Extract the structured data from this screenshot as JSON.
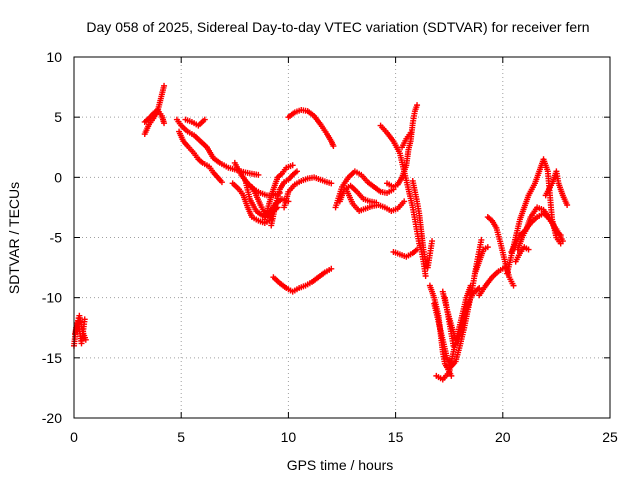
{
  "chart_data": {
    "type": "scatter",
    "title": "Day 058 of 2025, Sidereal Day-to-day VTEC variation (SDTVAR) for receiver fern",
    "xlabel": "GPS time / hours",
    "ylabel": "SDTVAR / TECUs",
    "xlim": [
      0,
      25
    ],
    "ylim": [
      -20,
      10
    ],
    "xticks": [
      0,
      5,
      10,
      15,
      20,
      25
    ],
    "yticks": [
      -20,
      -15,
      -10,
      -5,
      0,
      5,
      10
    ],
    "grid": true,
    "marker": "+",
    "color": "#ff0000",
    "tracks": [
      [
        [
          0.0,
          -14.0
        ],
        [
          0.1,
          -12.5
        ],
        [
          0.25,
          -11.5
        ],
        [
          0.4,
          -12.8
        ],
        [
          0.55,
          -13.5
        ]
      ],
      [
        [
          0.05,
          -13.0
        ],
        [
          0.2,
          -12.0
        ],
        [
          0.35,
          -13.8
        ],
        [
          0.5,
          -11.8
        ]
      ],
      [
        [
          3.3,
          3.6
        ],
        [
          3.5,
          4.4
        ],
        [
          3.7,
          4.9
        ],
        [
          3.9,
          5.5
        ],
        [
          4.0,
          6.2
        ],
        [
          4.1,
          6.9
        ],
        [
          4.2,
          7.6
        ]
      ],
      [
        [
          3.3,
          4.6
        ],
        [
          3.5,
          4.9
        ],
        [
          3.7,
          5.3
        ],
        [
          3.9,
          5.6
        ],
        [
          4.1,
          5.1
        ],
        [
          4.2,
          4.5
        ]
      ],
      [
        [
          4.8,
          4.8
        ],
        [
          5.0,
          4.3
        ],
        [
          5.3,
          3.8
        ],
        [
          5.6,
          3.5
        ],
        [
          5.9,
          3.0
        ],
        [
          6.2,
          2.5
        ],
        [
          6.5,
          1.6
        ],
        [
          6.8,
          1.2
        ],
        [
          7.2,
          0.8
        ],
        [
          7.6,
          0.6
        ],
        [
          8.0,
          0.4
        ],
        [
          8.3,
          0.3
        ],
        [
          8.6,
          0.2
        ]
      ],
      [
        [
          4.9,
          3.8
        ],
        [
          5.1,
          3.0
        ],
        [
          5.3,
          2.6
        ],
        [
          5.6,
          2.0
        ],
        [
          5.8,
          1.5
        ],
        [
          6.0,
          1.2
        ],
        [
          6.3,
          0.9
        ],
        [
          6.5,
          0.4
        ],
        [
          6.7,
          0.0
        ],
        [
          6.9,
          -0.4
        ]
      ],
      [
        [
          5.2,
          4.8
        ],
        [
          5.5,
          4.6
        ],
        [
          5.8,
          4.3
        ],
        [
          6.1,
          4.8
        ]
      ],
      [
        [
          7.4,
          -0.5
        ],
        [
          7.7,
          -1.0
        ],
        [
          7.9,
          -1.5
        ],
        [
          8.1,
          -2.5
        ],
        [
          8.3,
          -3.3
        ],
        [
          8.6,
          -3.6
        ],
        [
          8.9,
          -3.8
        ],
        [
          9.2,
          -3.5
        ]
      ],
      [
        [
          7.5,
          1.2
        ],
        [
          7.8,
          0.2
        ],
        [
          8.1,
          -0.5
        ],
        [
          8.4,
          -1.0
        ],
        [
          8.7,
          -1.3
        ],
        [
          9.0,
          -1.5
        ],
        [
          9.3,
          -1.5
        ],
        [
          9.6,
          -1.3
        ]
      ],
      [
        [
          8.0,
          -0.3
        ],
        [
          8.2,
          -1.8
        ],
        [
          8.5,
          -2.8
        ],
        [
          8.8,
          -3.2
        ],
        [
          9.1,
          -3.0
        ],
        [
          9.4,
          -2.2
        ],
        [
          9.7,
          -1.8
        ],
        [
          10.0,
          -2.0
        ]
      ],
      [
        [
          8.3,
          -0.8
        ],
        [
          8.5,
          -1.5
        ],
        [
          8.7,
          -2.3
        ],
        [
          8.9,
          -3.0
        ],
        [
          9.1,
          -3.3
        ],
        [
          9.3,
          -2.8
        ],
        [
          9.5,
          -2.5
        ]
      ],
      [
        [
          8.9,
          -3.5
        ],
        [
          9.1,
          -2.2
        ],
        [
          9.3,
          -1.0
        ],
        [
          9.5,
          0.0
        ],
        [
          9.7,
          0.3
        ],
        [
          9.9,
          0.8
        ],
        [
          10.2,
          1.0
        ]
      ],
      [
        [
          9.2,
          -4.0
        ],
        [
          9.4,
          -2.3
        ],
        [
          9.6,
          -1.0
        ],
        [
          9.8,
          -0.4
        ],
        [
          10.0,
          -0.2
        ],
        [
          10.2,
          0.2
        ],
        [
          10.4,
          0.5
        ]
      ],
      [
        [
          9.8,
          -2.5
        ],
        [
          10.0,
          -1.2
        ],
        [
          10.3,
          -0.6
        ],
        [
          10.6,
          -0.3
        ],
        [
          10.9,
          -0.1
        ],
        [
          11.2,
          0.0
        ],
        [
          11.5,
          -0.2
        ],
        [
          11.8,
          -0.4
        ],
        [
          12.0,
          -0.5
        ]
      ],
      [
        [
          10.0,
          5.0
        ],
        [
          10.3,
          5.4
        ],
        [
          10.6,
          5.6
        ],
        [
          10.9,
          5.5
        ],
        [
          11.2,
          5.1
        ],
        [
          11.5,
          4.4
        ],
        [
          11.8,
          3.6
        ],
        [
          12.0,
          3.0
        ],
        [
          12.1,
          2.6
        ]
      ],
      [
        [
          9.3,
          -8.3
        ],
        [
          9.6,
          -8.8
        ],
        [
          9.9,
          -9.2
        ],
        [
          10.2,
          -9.5
        ],
        [
          10.5,
          -9.2
        ],
        [
          10.8,
          -9.0
        ],
        [
          11.1,
          -8.7
        ],
        [
          11.4,
          -8.3
        ],
        [
          11.7,
          -7.9
        ],
        [
          12.0,
          -7.6
        ]
      ],
      [
        [
          12.2,
          -2.5
        ],
        [
          12.5,
          -0.8
        ],
        [
          12.8,
          0.0
        ],
        [
          13.1,
          0.5
        ],
        [
          13.4,
          0.2
        ],
        [
          13.7,
          -0.4
        ],
        [
          14.0,
          -0.8
        ],
        [
          14.3,
          -1.2
        ],
        [
          14.6,
          -1.3
        ],
        [
          14.9,
          -1.0
        ]
      ],
      [
        [
          12.4,
          -2.0
        ],
        [
          12.6,
          -1.0
        ],
        [
          12.9,
          -0.7
        ],
        [
          13.2,
          -1.2
        ],
        [
          13.5,
          -1.8
        ],
        [
          13.8,
          -2.0
        ],
        [
          14.1,
          -2.1
        ]
      ],
      [
        [
          12.7,
          -1.0
        ],
        [
          13.0,
          -2.2
        ],
        [
          13.3,
          -2.8
        ],
        [
          13.6,
          -2.6
        ],
        [
          13.9,
          -2.4
        ],
        [
          14.2,
          -2.3
        ],
        [
          14.5,
          -2.5
        ],
        [
          14.8,
          -2.8
        ],
        [
          15.1,
          -2.6
        ],
        [
          15.4,
          -2.0
        ]
      ],
      [
        [
          14.3,
          4.3
        ],
        [
          14.6,
          3.7
        ],
        [
          14.9,
          3.0
        ],
        [
          15.2,
          2.0
        ],
        [
          15.4,
          0.5
        ],
        [
          15.6,
          -1.0
        ],
        [
          15.8,
          -2.5
        ],
        [
          15.9,
          -3.5
        ],
        [
          16.0,
          -4.5
        ],
        [
          16.1,
          -5.5
        ],
        [
          16.2,
          -6.0
        ],
        [
          16.3,
          -7.0
        ],
        [
          16.4,
          -8.2
        ]
      ],
      [
        [
          14.6,
          -0.5
        ],
        [
          14.9,
          -0.8
        ],
        [
          15.1,
          -0.6
        ],
        [
          15.3,
          0.0
        ],
        [
          15.5,
          1.0
        ],
        [
          15.6,
          2.3
        ],
        [
          15.7,
          3.0
        ],
        [
          15.8,
          4.5
        ],
        [
          15.9,
          5.5
        ],
        [
          16.0,
          6.0
        ]
      ],
      [
        [
          15.3,
          2.5
        ],
        [
          15.5,
          3.2
        ],
        [
          15.7,
          3.7
        ]
      ],
      [
        [
          15.8,
          -0.3
        ],
        [
          16.0,
          -2.0
        ],
        [
          16.1,
          -3.0
        ],
        [
          16.2,
          -4.5
        ],
        [
          16.3,
          -6.0
        ],
        [
          16.4,
          -7.0
        ],
        [
          16.5,
          -7.5
        ],
        [
          16.7,
          -5.3
        ]
      ],
      [
        [
          14.9,
          -6.2
        ],
        [
          15.2,
          -6.4
        ],
        [
          15.5,
          -6.6
        ],
        [
          15.8,
          -6.3
        ],
        [
          16.0,
          -6.0
        ]
      ],
      [
        [
          16.6,
          -9.0
        ],
        [
          16.8,
          -10.0
        ],
        [
          17.0,
          -11.5
        ],
        [
          17.1,
          -13.0
        ],
        [
          17.2,
          -14.5
        ],
        [
          17.3,
          -15.5
        ],
        [
          17.4,
          -15.8
        ],
        [
          17.6,
          -16.5
        ]
      ],
      [
        [
          16.8,
          -10.5
        ],
        [
          17.0,
          -12.0
        ],
        [
          17.2,
          -13.5
        ],
        [
          17.4,
          -15.0
        ],
        [
          17.6,
          -15.7
        ],
        [
          17.8,
          -15.3
        ],
        [
          18.0,
          -14.0
        ],
        [
          18.2,
          -12.5
        ],
        [
          18.4,
          -10.8
        ],
        [
          18.6,
          -9.0
        ],
        [
          18.8,
          -7.0
        ],
        [
          19.0,
          -5.2
        ]
      ],
      [
        [
          16.9,
          -16.5
        ],
        [
          17.2,
          -16.8
        ],
        [
          17.5,
          -16.2
        ],
        [
          17.7,
          -14.5
        ],
        [
          17.9,
          -13.0
        ],
        [
          18.1,
          -11.5
        ],
        [
          18.3,
          -10.0
        ],
        [
          18.5,
          -9.0
        ]
      ],
      [
        [
          17.2,
          -9.5
        ],
        [
          17.4,
          -11.0
        ],
        [
          17.6,
          -12.3
        ],
        [
          17.8,
          -13.5
        ],
        [
          18.0,
          -13.0
        ],
        [
          18.2,
          -11.5
        ],
        [
          18.4,
          -10.5
        ],
        [
          18.6,
          -9.5
        ]
      ],
      [
        [
          17.3,
          -10.0
        ],
        [
          17.5,
          -12.0
        ],
        [
          17.7,
          -14.0
        ],
        [
          17.9,
          -13.8
        ],
        [
          18.1,
          -12.5
        ],
        [
          18.3,
          -11.0
        ],
        [
          18.5,
          -10.0
        ],
        [
          18.7,
          -9.5
        ],
        [
          18.9,
          -9.2
        ]
      ],
      [
        [
          18.7,
          -8.0
        ],
        [
          18.9,
          -7.0
        ],
        [
          19.1,
          -6.0
        ],
        [
          19.3,
          -5.8
        ]
      ],
      [
        [
          18.9,
          -9.8
        ],
        [
          19.2,
          -9.0
        ],
        [
          19.5,
          -8.3
        ],
        [
          19.8,
          -7.8
        ],
        [
          20.1,
          -7.5
        ]
      ],
      [
        [
          19.3,
          -3.3
        ],
        [
          19.5,
          -3.6
        ],
        [
          19.7,
          -4.2
        ],
        [
          19.9,
          -5.5
        ],
        [
          20.1,
          -7.0
        ],
        [
          20.3,
          -8.3
        ],
        [
          20.5,
          -9.0
        ]
      ],
      [
        [
          20.2,
          -8.0
        ],
        [
          20.4,
          -6.5
        ],
        [
          20.6,
          -5.0
        ],
        [
          20.8,
          -3.5
        ],
        [
          21.0,
          -2.5
        ],
        [
          21.2,
          -1.5
        ],
        [
          21.5,
          -0.5
        ],
        [
          21.7,
          0.5
        ],
        [
          21.9,
          1.5
        ],
        [
          22.1,
          0.5
        ],
        [
          22.2,
          -1.5
        ],
        [
          22.3,
          -3.5
        ],
        [
          22.5,
          -5.0
        ],
        [
          22.7,
          -5.5
        ]
      ],
      [
        [
          20.4,
          -6.2
        ],
        [
          20.6,
          -5.5
        ],
        [
          20.8,
          -4.8
        ],
        [
          21.0,
          -4.5
        ],
        [
          21.3,
          -3.8
        ],
        [
          21.6,
          -3.3
        ],
        [
          21.9,
          -3.0
        ],
        [
          22.1,
          -3.3
        ],
        [
          22.3,
          -3.8
        ],
        [
          22.5,
          -4.5
        ],
        [
          22.7,
          -4.8
        ]
      ],
      [
        [
          20.7,
          -6.0
        ],
        [
          20.9,
          -5.0
        ],
        [
          21.1,
          -4.3
        ],
        [
          21.3,
          -3.3
        ],
        [
          21.6,
          -2.5
        ],
        [
          21.9,
          -2.7
        ],
        [
          22.2,
          -3.5
        ],
        [
          22.5,
          -4.3
        ],
        [
          22.8,
          -5.3
        ]
      ],
      [
        [
          22.0,
          -1.5
        ],
        [
          22.3,
          -0.5
        ],
        [
          22.5,
          0.5
        ],
        [
          22.6,
          -0.5
        ],
        [
          22.8,
          -1.5
        ],
        [
          23.0,
          -2.3
        ]
      ],
      [
        [
          20.6,
          -7.0
        ],
        [
          20.8,
          -6.3
        ],
        [
          21.0,
          -5.8
        ],
        [
          21.2,
          -6.0
        ]
      ]
    ]
  }
}
